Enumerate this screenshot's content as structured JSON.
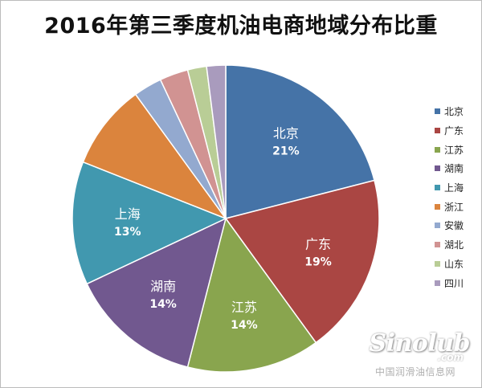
{
  "chart_data": {
    "type": "pie",
    "title": "2016年第三季度机油电商地域分布比重",
    "categories": [
      "北京",
      "广东",
      "江苏",
      "湖南",
      "上海",
      "浙江",
      "安徽",
      "湖北",
      "山东",
      "四川"
    ],
    "values": [
      21,
      19,
      14,
      14,
      13,
      9,
      3,
      3,
      2,
      2
    ],
    "data_labels": [
      "21%",
      "19%",
      "14%",
      "14%",
      "13%",
      "",
      "",
      "",
      "",
      ""
    ],
    "colors": [
      "#4573A7",
      "#AA4643",
      "#89A54E",
      "#71588F",
      "#4198AF",
      "#DB843D",
      "#93A9CF",
      "#D19392",
      "#B9CD96",
      "#A99BBD"
    ],
    "legend": {
      "position": "right"
    }
  },
  "watermark": {
    "logo": "Sinolub",
    "suffix": ".com",
    "site": "中国润滑油信息网"
  }
}
